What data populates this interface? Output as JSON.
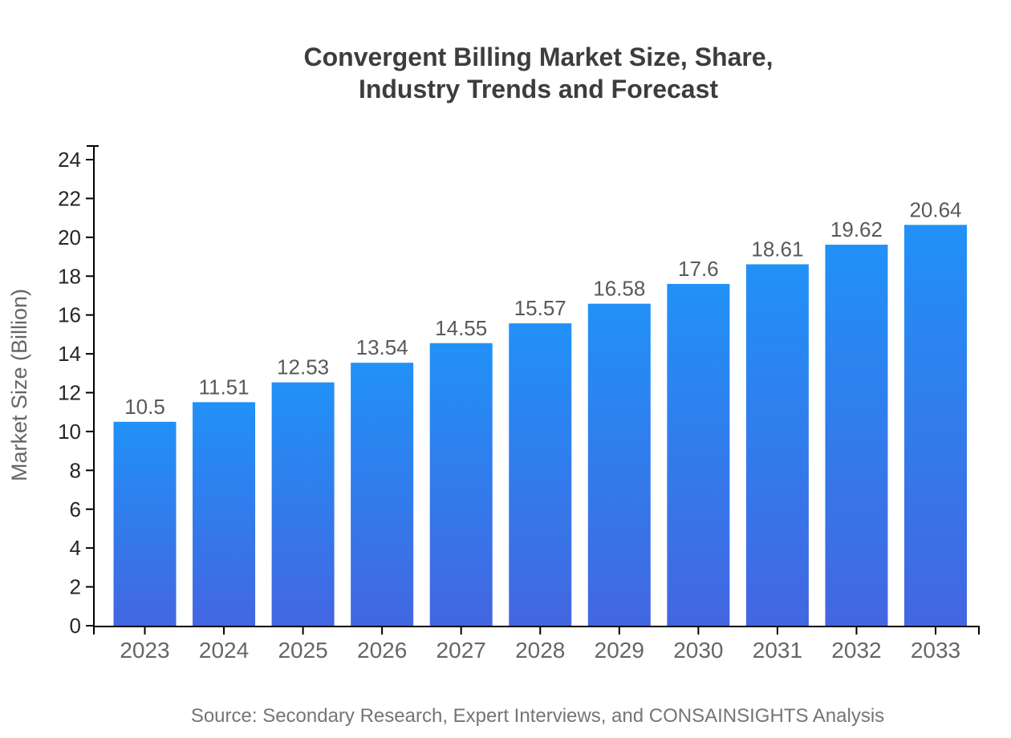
{
  "chart_data": {
    "type": "bar",
    "title": "Convergent Billing Market Size, Share, Industry Trends and Forecast",
    "title_lines": [
      "Convergent Billing Market Size, Share,",
      "Industry Trends and Forecast"
    ],
    "categories": [
      "2023",
      "2024",
      "2025",
      "2026",
      "2027",
      "2028",
      "2029",
      "2030",
      "2031",
      "2032",
      "2033"
    ],
    "values": [
      10.5,
      11.51,
      12.53,
      13.54,
      14.55,
      15.57,
      16.58,
      17.6,
      18.61,
      19.62,
      20.64
    ],
    "value_labels": [
      "10.5",
      "11.51",
      "12.53",
      "13.54",
      "14.55",
      "15.57",
      "16.58",
      "17.6",
      "18.61",
      "19.62",
      "20.64"
    ],
    "xlabel": "",
    "ylabel": "Market Size (Billion)",
    "ylim": [
      0,
      24.8
    ],
    "yticks": [
      0,
      2,
      4,
      6,
      8,
      10,
      12,
      14,
      16,
      18,
      20,
      22,
      24
    ],
    "grid": false,
    "legend": null,
    "source": "Source: Secondary Research, Expert Interviews, and CONSAINSIGHTS Analysis",
    "colors": {
      "bar_gradient_top": "#2191f7",
      "bar_gradient_bottom": "#4366e1",
      "axis": "#000000",
      "y_tick_label": "#262626",
      "category_label": "#666666",
      "value_label": "#595959",
      "title": "#3d3d3d",
      "ylabel": "#666666",
      "source": "#757575",
      "background": "#ffffff"
    }
  }
}
